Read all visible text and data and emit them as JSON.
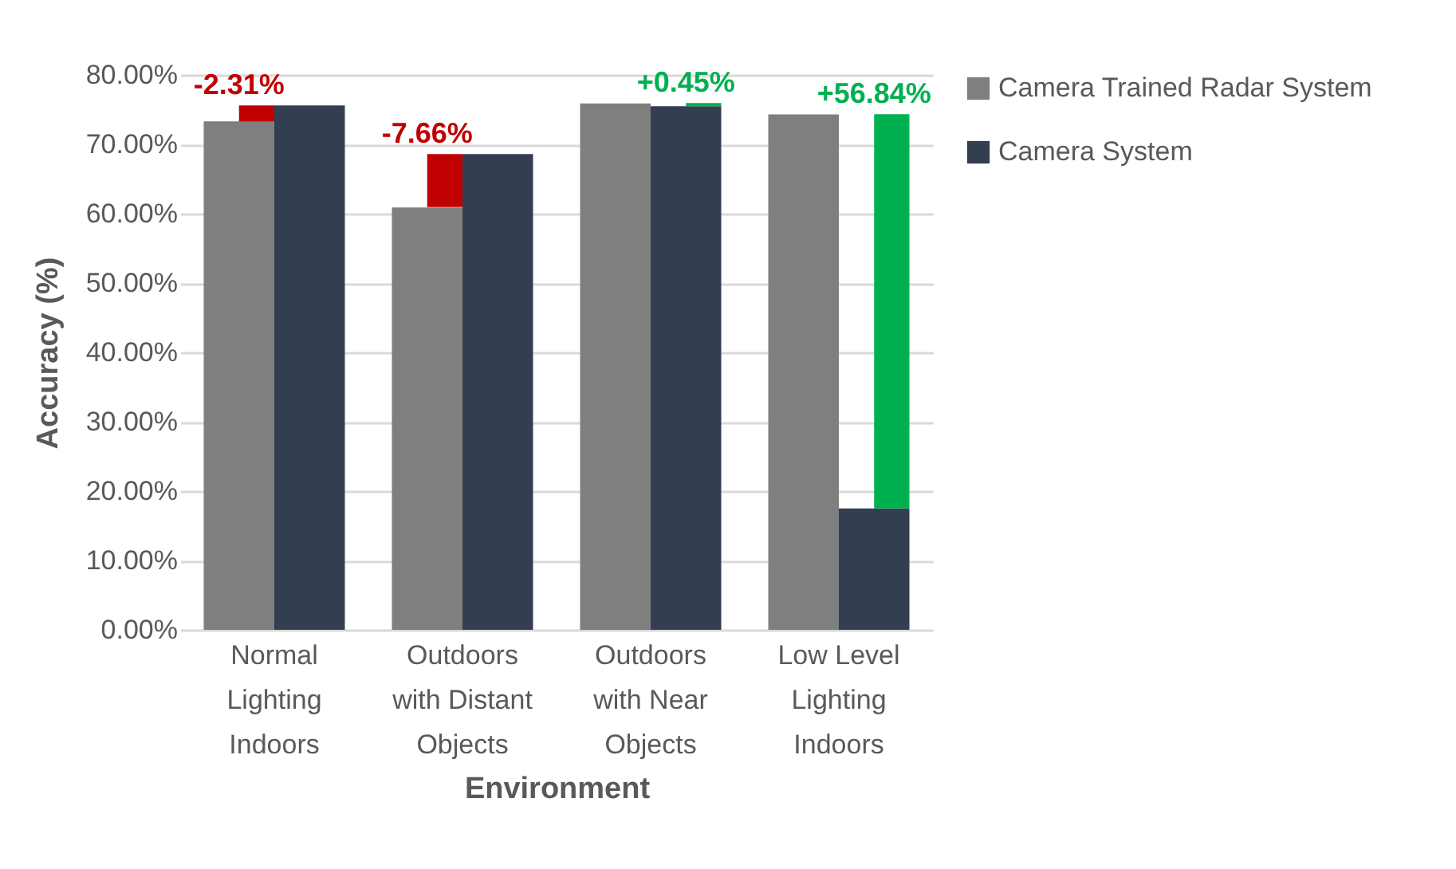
{
  "chart_data": {
    "type": "bar",
    "xlabel": "Environment",
    "ylabel": "Accuracy (%)",
    "categories": [
      "Normal Lighting Indoors",
      "Outdoors with Distant Objects",
      "Outdoors with Near Objects",
      "Low Level Lighting Indoors"
    ],
    "series": [
      {
        "name": "Camera Trained Radar System",
        "color": "#7f7f7f",
        "values": [
          73.3,
          60.9,
          75.9,
          74.3
        ]
      },
      {
        "name": "Camera System",
        "color": "#333f50",
        "values": [
          75.6,
          68.6,
          75.5,
          17.5
        ]
      },
      {
        "base": [
          75.6,
          68.6,
          75.5,
          17.5
        ],
        "values": [
          -2.31,
          -7.66,
          0.45,
          56.84
        ],
        "colors": [
          "#c00000",
          "#c00000",
          "#00b050",
          "#00b050"
        ],
        "value_labels": [
          "-2.31%",
          "-7.66%",
          "+0.45%",
          "+56.84%"
        ]
      }
    ],
    "ylim": [
      0,
      80
    ],
    "yticks": [
      {
        "value": 0,
        "label": "0.00%"
      },
      {
        "value": 10,
        "label": "10.00%"
      },
      {
        "value": 20,
        "label": "20.00%"
      },
      {
        "value": 30,
        "label": "30.00%"
      },
      {
        "value": 40,
        "label": "40.00%"
      },
      {
        "value": 50,
        "label": "50.00%"
      },
      {
        "value": 60,
        "label": "60.00%"
      },
      {
        "value": 70,
        "label": "70.00%"
      },
      {
        "value": 80,
        "label": "80.00%"
      }
    ],
    "grid": "y",
    "legend": "right"
  }
}
